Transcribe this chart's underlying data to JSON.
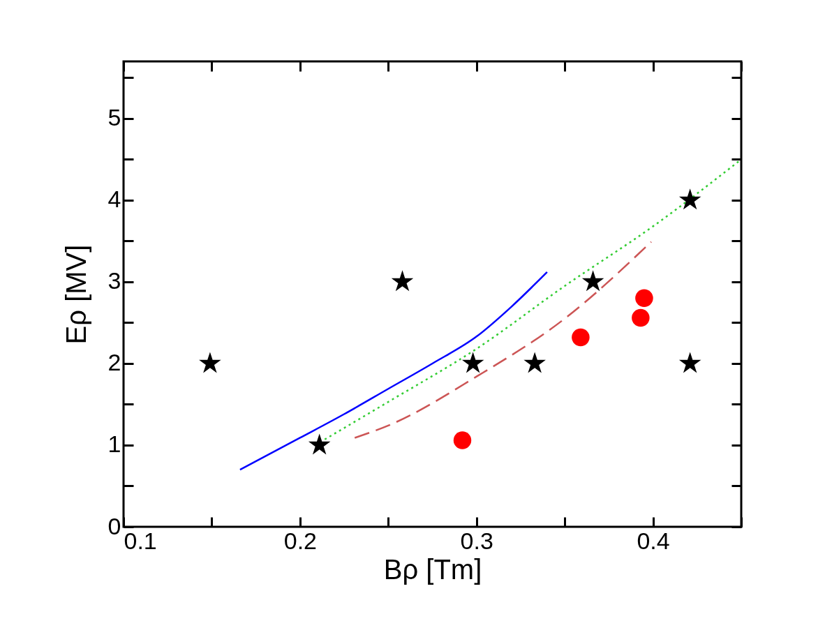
{
  "chart_data": {
    "type": "scatter",
    "xlabel": "Bρ [Tm]",
    "ylabel": "Eρ [MV]",
    "xlim": [
      0.1,
      0.45
    ],
    "ylim": [
      0,
      5.7
    ],
    "xticks": [
      0.1,
      {
        "value": 0.15,
        "label": null
      },
      0.2,
      {
        "value": 0.25,
        "label": null
      },
      0.3,
      {
        "value": 0.35,
        "label": null
      },
      0.4,
      {
        "value": 0.45,
        "label": null
      }
    ],
    "yticks": [
      0,
      {
        "value": 0.5,
        "label": null
      },
      1,
      {
        "value": 1.5,
        "label": null
      },
      2,
      {
        "value": 2.5,
        "label": null
      },
      3,
      {
        "value": 3.5,
        "label": null
      },
      4,
      {
        "value": 4.5,
        "label": null
      },
      5,
      {
        "value": 5.5,
        "label": null
      }
    ],
    "grid": false,
    "series": [
      {
        "type": "line",
        "color": "#0000ff",
        "line_style": "solid",
        "marker": "none",
        "x": [
          0.166,
          0.2,
          0.225,
          0.25,
          0.275,
          0.3,
          0.32,
          0.34
        ],
        "values": [
          0.7,
          1.09,
          1.38,
          1.69,
          2.0,
          2.33,
          2.7,
          3.12
        ]
      },
      {
        "type": "line",
        "color": "#33cc33",
        "line_style": "dotted",
        "marker": "none",
        "x": [
          0.214,
          0.25,
          0.3,
          0.35,
          0.4,
          0.45
        ],
        "values": [
          1.07,
          1.53,
          2.18,
          2.95,
          3.68,
          4.5
        ]
      },
      {
        "type": "line",
        "color": "#cc5555",
        "line_style": "dashed",
        "marker": "none",
        "x": [
          0.231,
          0.25,
          0.3,
          0.35,
          0.399
        ],
        "values": [
          1.09,
          1.24,
          1.84,
          2.55,
          3.49
        ]
      },
      {
        "color": "#ff0000",
        "marker": "circle",
        "x": [
          0.292,
          0.359,
          0.393,
          0.395
        ],
        "values": [
          1.06,
          2.32,
          2.56,
          2.8
        ]
      },
      {
        "color": "#000000",
        "marker": "star",
        "x": [
          0.149,
          0.211,
          0.258,
          0.298,
          0.333,
          0.366,
          0.421,
          0.421
        ],
        "values": [
          2,
          1,
          3,
          2,
          2,
          3,
          4,
          2
        ]
      }
    ]
  }
}
